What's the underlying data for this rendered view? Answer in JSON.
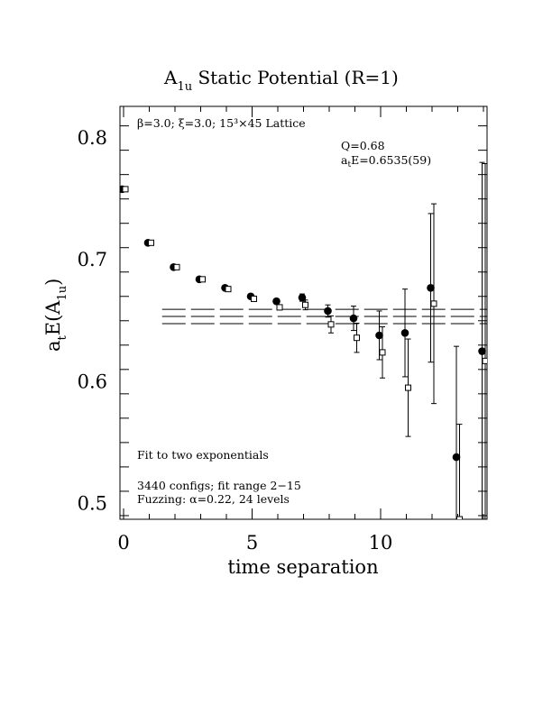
{
  "chart_data": {
    "type": "scatter",
    "title_main": "A",
    "title_sub": "1u",
    "title_rest": " Static Potential (R=1)",
    "xlabel": "time separation",
    "ylabel_main": "a",
    "ylabel_sub1": "t",
    "ylabel_mid": "E(A",
    "ylabel_sub2": "1u",
    "ylabel_end": ")",
    "xlim": [
      0,
      14
    ],
    "ylim": [
      0.487,
      0.826
    ],
    "x_ticks": [
      0,
      5,
      10
    ],
    "y_ticks": [
      0.5,
      0.6,
      0.7,
      0.8
    ],
    "x_tick_labels": [
      "0",
      "5",
      "10"
    ],
    "y_tick_labels": [
      "0.5",
      "0.6",
      "0.7",
      "0.8"
    ],
    "lattice_note": "β=3.0; ξ=3.0; 15³×45 Lattice",
    "q_note": "Q=0.68",
    "fit_note": "a",
    "fit_note_sub": "t",
    "fit_note_rest": "E=0.6535(59)",
    "method_note": "Fit to two exponentials",
    "configs_note": "3440 configs; fit range 2−15",
    "fuzzing_note": "Fuzzing: α=0.22, 24 levels",
    "fit": {
      "value": 0.6535,
      "upper": 0.6594,
      "lower": 0.6476,
      "x_start": 1.5,
      "x_end": 14
    },
    "series": [
      {
        "marker": "filled-circle",
        "points": [
          {
            "x": 0,
            "y": 0.758,
            "err": 0.001
          },
          {
            "x": 1,
            "y": 0.714,
            "err": 0.001
          },
          {
            "x": 2,
            "y": 0.694,
            "err": 0.001
          },
          {
            "x": 3,
            "y": 0.684,
            "err": 0.001
          },
          {
            "x": 4,
            "y": 0.677,
            "err": 0.0015
          },
          {
            "x": 5,
            "y": 0.67,
            "err": 0.002
          },
          {
            "x": 6,
            "y": 0.666,
            "err": 0.002
          },
          {
            "x": 7,
            "y": 0.669,
            "err": 0.003
          },
          {
            "x": 8,
            "y": 0.658,
            "err": 0.005
          },
          {
            "x": 9,
            "y": 0.652,
            "err": 0.01
          },
          {
            "x": 10,
            "y": 0.638,
            "err": 0.02
          },
          {
            "x": 11,
            "y": 0.64,
            "err": 0.036
          },
          {
            "x": 12,
            "y": 0.677,
            "err": 0.061
          },
          {
            "x": 13,
            "y": 0.538,
            "err": 0.091
          },
          {
            "x": 14,
            "y": 0.625,
            "err": 0.155
          }
        ]
      },
      {
        "marker": "open-square",
        "points": [
          {
            "x": 0,
            "y": 0.758,
            "err": 0.001
          },
          {
            "x": 1,
            "y": 0.714,
            "err": 0.001
          },
          {
            "x": 2,
            "y": 0.694,
            "err": 0.001
          },
          {
            "x": 3,
            "y": 0.684,
            "err": 0.001
          },
          {
            "x": 4,
            "y": 0.676,
            "err": 0.0015
          },
          {
            "x": 5,
            "y": 0.668,
            "err": 0.002
          },
          {
            "x": 6,
            "y": 0.661,
            "err": 0.002
          },
          {
            "x": 7,
            "y": 0.663,
            "err": 0.004
          },
          {
            "x": 8,
            "y": 0.647,
            "err": 0.007
          },
          {
            "x": 9,
            "y": 0.636,
            "err": 0.012
          },
          {
            "x": 10,
            "y": 0.624,
            "err": 0.021
          },
          {
            "x": 11,
            "y": 0.595,
            "err": 0.04
          },
          {
            "x": 12,
            "y": 0.664,
            "err": 0.082
          },
          {
            "x": 13,
            "y": 0.487,
            "err": 0.078
          },
          {
            "x": 14,
            "y": 0.617,
            "err": 0.162
          }
        ]
      }
    ]
  }
}
